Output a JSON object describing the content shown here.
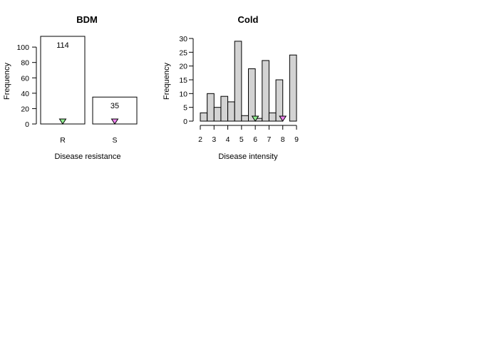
{
  "chart_data": [
    {
      "id": "bdm",
      "type": "bar",
      "title": "BDM",
      "xlabel": "Disease resistance",
      "ylabel": "Frequency",
      "categories": [
        "R",
        "S"
      ],
      "values": [
        114,
        35
      ],
      "data_labels": [
        "114",
        "35"
      ],
      "ylim": [
        0,
        114
      ],
      "yticks": [
        0,
        20,
        40,
        60,
        80,
        100
      ],
      "bar_fill": "#ffffff",
      "markers": [
        {
          "category": "R",
          "value": 0,
          "color": "#90ee90"
        },
        {
          "category": "S",
          "value": 0,
          "color": "#ee82ee"
        }
      ],
      "grid": false
    },
    {
      "id": "cold",
      "type": "bar",
      "title": "Cold",
      "xlabel": "Disease intensity",
      "ylabel": "Frequency",
      "bin_edges": [
        2,
        2.5,
        3,
        3.5,
        4,
        4.5,
        5,
        5.5,
        6,
        6.5,
        7,
        7.5,
        8,
        8.5,
        9
      ],
      "values": [
        3,
        10,
        5,
        9,
        7,
        29,
        2,
        19,
        1,
        22,
        3,
        15,
        0,
        24
      ],
      "xlim": [
        2,
        9
      ],
      "ylim": [
        0,
        30
      ],
      "xticks": [
        2,
        3,
        4,
        5,
        6,
        7,
        8,
        9
      ],
      "yticks": [
        0,
        5,
        10,
        15,
        20,
        25,
        30
      ],
      "bar_fill": "#d3d3d3",
      "markers": [
        {
          "x": 6,
          "value": 0,
          "color": "#90ee90"
        },
        {
          "x": 8,
          "value": 0,
          "color": "#ee82ee"
        }
      ],
      "grid": false
    }
  ]
}
